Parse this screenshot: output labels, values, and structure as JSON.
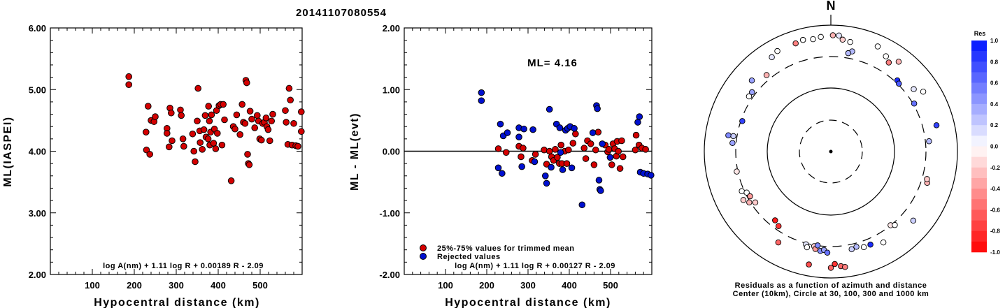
{
  "title": "20141107080554",
  "colors": {
    "red": "#d40000",
    "blue": "#0010d0",
    "axis": "#000000"
  },
  "chart_data": [
    {
      "type": "scatter",
      "name": "ml-vs-distance",
      "ylabel": "ML(IASPEI)",
      "xlabel": "Hypocentral distance (km)",
      "xlim": [
        0,
        600
      ],
      "ylim": [
        2.0,
        6.0
      ],
      "xticks": [
        "100",
        "200",
        "300",
        "400",
        "500"
      ],
      "yticks": [
        "2.00",
        "3.00",
        "4.00",
        "5.00",
        "6.00"
      ],
      "grid": false,
      "formula": "log A(nm) + 1.11 log R + 0.00189 R - 2.09",
      "points": [
        [
          187,
          5.21
        ],
        [
          187,
          5.08
        ],
        [
          228,
          4.31
        ],
        [
          229,
          4.02
        ],
        [
          233,
          4.73
        ],
        [
          237,
          3.95
        ],
        [
          240,
          4.5
        ],
        [
          247,
          4.48
        ],
        [
          250,
          4.56
        ],
        [
          278,
          4.37
        ],
        [
          278,
          4.29
        ],
        [
          283,
          4.07
        ],
        [
          285,
          4.7
        ],
        [
          288,
          4.62
        ],
        [
          290,
          4.17
        ],
        [
          310,
          4.67
        ],
        [
          312,
          4.58
        ],
        [
          316,
          4.2
        ],
        [
          318,
          4.08
        ],
        [
          339,
          4.28
        ],
        [
          342,
          4.0
        ],
        [
          345,
          3.83
        ],
        [
          350,
          4.49
        ],
        [
          352,
          5.02
        ],
        [
          356,
          4.33
        ],
        [
          357,
          4.14
        ],
        [
          362,
          4.03
        ],
        [
          366,
          4.35
        ],
        [
          369,
          4.58
        ],
        [
          371,
          4.23
        ],
        [
          376,
          4.2
        ],
        [
          377,
          4.73
        ],
        [
          379,
          4.49
        ],
        [
          380,
          4.1
        ],
        [
          382,
          4.31
        ],
        [
          384,
          4.59
        ],
        [
          389,
          4.13
        ],
        [
          391,
          4.36
        ],
        [
          394,
          4.04
        ],
        [
          396,
          4.66
        ],
        [
          398,
          4.29
        ],
        [
          402,
          4.74
        ],
        [
          406,
          4.76
        ],
        [
          409,
          4.1
        ],
        [
          412,
          4.76
        ],
        [
          415,
          4.51
        ],
        [
          431,
          3.52
        ],
        [
          436,
          4.4
        ],
        [
          440,
          4.36
        ],
        [
          444,
          4.59
        ],
        [
          452,
          4.27
        ],
        [
          457,
          4.76
        ],
        [
          460,
          4.47
        ],
        [
          464,
          4.45
        ],
        [
          466,
          5.15
        ],
        [
          468,
          5.11
        ],
        [
          470,
          3.95
        ],
        [
          472,
          3.8
        ],
        [
          474,
          3.78
        ],
        [
          476,
          4.65
        ],
        [
          480,
          4.52
        ],
        [
          487,
          4.38
        ],
        [
          493,
          4.58
        ],
        [
          496,
          4.49
        ],
        [
          499,
          4.2
        ],
        [
          503,
          4.18
        ],
        [
          506,
          4.45
        ],
        [
          510,
          4.47
        ],
        [
          514,
          4.54
        ],
        [
          516,
          4.4
        ],
        [
          519,
          4.35
        ],
        [
          523,
          4.17
        ],
        [
          527,
          4.49
        ],
        [
          530,
          4.6
        ],
        [
          560,
          4.66
        ],
        [
          562,
          4.47
        ],
        [
          566,
          4.11
        ],
        [
          569,
          5.02
        ],
        [
          572,
          4.83
        ],
        [
          576,
          4.1
        ],
        [
          580,
          4.45
        ],
        [
          585,
          4.09
        ],
        [
          590,
          4.08
        ],
        [
          598,
          4.64
        ],
        [
          598,
          4.32
        ]
      ]
    },
    {
      "type": "scatter",
      "name": "residual-vs-distance",
      "ylabel": "ML - ML(evt)",
      "xlabel": "Hypocentral distance (km)",
      "xlim": [
        0,
        600
      ],
      "ylim": [
        -2.0,
        2.0
      ],
      "xticks": [
        "100",
        "200",
        "300",
        "400",
        "500"
      ],
      "yticks": [
        "-2.00",
        "-1.00",
        "0.00",
        "1.00",
        "2.00"
      ],
      "grid": false,
      "ml_label": "ML= 4.16",
      "formula": "log A(nm) + 1.11 log R + 0.00127 R - 2.09",
      "legend": [
        "25%-75% values for trimmed mean",
        "Rejected values"
      ],
      "legend_position": "bottom-left",
      "series": [
        {
          "name": "25%-75% values for trimmed mean",
          "color": "red",
          "points": [
            [
              228,
              0.04
            ],
            [
              247,
              -0.02
            ],
            [
              278,
              0.08
            ],
            [
              283,
              -0.09
            ],
            [
              288,
              0.05
            ],
            [
              310,
              -0.15
            ],
            [
              318,
              -0.05
            ],
            [
              339,
              0.02
            ],
            [
              345,
              -0.21
            ],
            [
              352,
              0.0
            ],
            [
              357,
              -0.09
            ],
            [
              362,
              -0.15
            ],
            [
              366,
              0.03
            ],
            [
              371,
              -0.1
            ],
            [
              376,
              -0.2
            ],
            [
              380,
              0.1
            ],
            [
              382,
              -0.2
            ],
            [
              389,
              0.0
            ],
            [
              394,
              -0.2
            ],
            [
              398,
              0.02
            ],
            [
              409,
              0.13
            ],
            [
              415,
              0.28
            ],
            [
              436,
              0.05
            ],
            [
              440,
              -0.12
            ],
            [
              444,
              0.17
            ],
            [
              452,
              0.12
            ],
            [
              460,
              -0.22
            ],
            [
              464,
              0.02
            ],
            [
              470,
              0.31
            ],
            [
              487,
              0.1
            ],
            [
              493,
              -0.01
            ],
            [
              496,
              0.03
            ],
            [
              503,
              -0.22
            ],
            [
              506,
              0.12
            ],
            [
              510,
              0.04
            ],
            [
              514,
              -0.08
            ],
            [
              516,
              0.16
            ],
            [
              519,
              0.0
            ],
            [
              523,
              -0.28
            ],
            [
              527,
              0.17
            ],
            [
              530,
              -0.09
            ],
            [
              560,
              0.02
            ],
            [
              562,
              0.26
            ],
            [
              569,
              0.1
            ],
            [
              576,
              0.05
            ],
            [
              585,
              0.03
            ]
          ]
        },
        {
          "name": "Rejected values",
          "color": "blue",
          "points": [
            [
              187,
              0.95
            ],
            [
              187,
              0.82
            ],
            [
              228,
              -0.27
            ],
            [
              233,
              0.44
            ],
            [
              237,
              -0.36
            ],
            [
              240,
              0.25
            ],
            [
              250,
              0.3
            ],
            [
              278,
              0.23
            ],
            [
              278,
              0.38
            ],
            [
              285,
              -0.25
            ],
            [
              290,
              0.36
            ],
            [
              312,
              0.35
            ],
            [
              316,
              -0.17
            ],
            [
              342,
              -0.4
            ],
            [
              345,
              -0.52
            ],
            [
              352,
              0.68
            ],
            [
              356,
              -0.26
            ],
            [
              369,
              0.44
            ],
            [
              377,
              0.38
            ],
            [
              379,
              -0.02
            ],
            [
              384,
              -0.3
            ],
            [
              391,
              0.34
            ],
            [
              396,
              0.37
            ],
            [
              402,
              0.4
            ],
            [
              406,
              -0.27
            ],
            [
              412,
              0.37
            ],
            [
              431,
              -0.87
            ],
            [
              457,
              0.3
            ],
            [
              466,
              0.74
            ],
            [
              468,
              0.69
            ],
            [
              472,
              -0.47
            ],
            [
              474,
              -0.62
            ],
            [
              476,
              -0.64
            ],
            [
              480,
              0.12
            ],
            [
              499,
              -0.1
            ],
            [
              566,
              0.47
            ],
            [
              570,
              0.56
            ],
            [
              572,
              -0.34
            ],
            [
              580,
              -0.36
            ],
            [
              590,
              -0.37
            ],
            [
              598,
              -0.39
            ]
          ]
        }
      ]
    },
    {
      "type": "scatter",
      "name": "azimuth-residual-map",
      "projection": "polar",
      "north_label": "N",
      "caption_line1": "Residuals as a function of azimuth and distance",
      "caption_line2": "Center (10km), Circle at 30, 100, 300 and 1000 km",
      "colorbar_title": "Res",
      "colorbar_ticks": [
        "1.0",
        "0.8",
        "0.6",
        "0.4",
        "0.2",
        "0.0",
        "-0.2",
        "-0.4",
        "-0.6",
        "-0.8",
        "-1.0"
      ],
      "points": [
        [
          -18,
          0.9,
          -0.5
        ],
        [
          -14,
          0.91,
          0.0
        ],
        [
          -9,
          0.9,
          0.0
        ],
        [
          -5,
          0.91,
          0.0
        ],
        [
          1,
          0.92,
          -0.3
        ],
        [
          4,
          0.92,
          0.1
        ],
        [
          6,
          0.89,
          -0.2
        ],
        [
          10,
          0.88,
          0.0
        ],
        [
          12,
          0.81,
          0.3
        ],
        [
          10,
          0.79,
          0.3
        ],
        [
          -28,
          0.9,
          0.0
        ],
        [
          -32,
          0.88,
          0.1
        ],
        [
          -40,
          0.79,
          -0.3
        ],
        [
          -48,
          0.84,
          0.4
        ],
        [
          -53,
          0.78,
          0.4
        ],
        [
          -56,
          0.78,
          0.0
        ],
        [
          24,
          0.91,
          0.0
        ],
        [
          30,
          0.87,
          0.0
        ],
        [
          33,
          0.84,
          -0.5
        ],
        [
          37,
          0.89,
          -0.3
        ],
        [
          43,
          0.77,
          0.9
        ],
        [
          45,
          0.76,
          0.7
        ],
        [
          53,
          0.82,
          0.1
        ],
        [
          57,
          0.87,
          0.0
        ],
        [
          60,
          0.76,
          0.6
        ],
        [
          76,
          0.86,
          0.8
        ],
        [
          84,
          0.78,
          0.3
        ],
        [
          -71,
          0.74,
          0.8
        ],
        [
          -81,
          0.78,
          0.2
        ],
        [
          -81,
          0.82,
          0.5
        ],
        [
          -85,
          0.78,
          0.4
        ],
        [
          -102,
          0.76,
          -0.1
        ],
        [
          -114,
          0.77,
          0.0
        ],
        [
          -116,
          0.74,
          0.0
        ],
        [
          -119,
          0.79,
          -0.2
        ],
        [
          -119,
          0.73,
          -0.4
        ],
        [
          -122,
          0.76,
          -0.3
        ],
        [
          -124,
          0.72,
          -0.2
        ],
        [
          -141,
          0.7,
          -0.9
        ],
        [
          -145,
          0.72,
          -0.8
        ],
        [
          -150,
          0.83,
          -0.6
        ],
        [
          -165,
          0.76,
          0.1
        ],
        [
          -166,
          0.78,
          0.0
        ],
        [
          -170,
          0.76,
          -0.2
        ],
        [
          -171,
          0.78,
          -0.4
        ],
        [
          -172,
          0.75,
          0.5
        ],
        [
          -174,
          0.79,
          0.5
        ],
        [
          -176,
          0.78,
          0.4
        ],
        [
          -178,
          0.8,
          0.6
        ],
        [
          -169,
          0.91,
          -0.7
        ],
        [
          180,
          0.92,
          -0.6
        ],
        [
          178,
          0.89,
          -0.8
        ],
        [
          175,
          0.91,
          -0.6
        ],
        [
          173,
          0.92,
          -0.5
        ],
        [
          168,
          0.79,
          0.2
        ],
        [
          165,
          0.78,
          0.3
        ],
        [
          161,
          0.8,
          0.0
        ],
        [
          157,
          0.8,
          0.9
        ],
        [
          150,
          0.83,
          0.0
        ],
        [
          141,
          0.75,
          -0.1
        ],
        [
          139,
          0.77,
          0.0
        ],
        [
          130,
          0.85,
          0.2
        ],
        [
          108,
          0.8,
          -0.3
        ],
        [
          106,
          0.79,
          -0.2
        ]
      ]
    }
  ]
}
